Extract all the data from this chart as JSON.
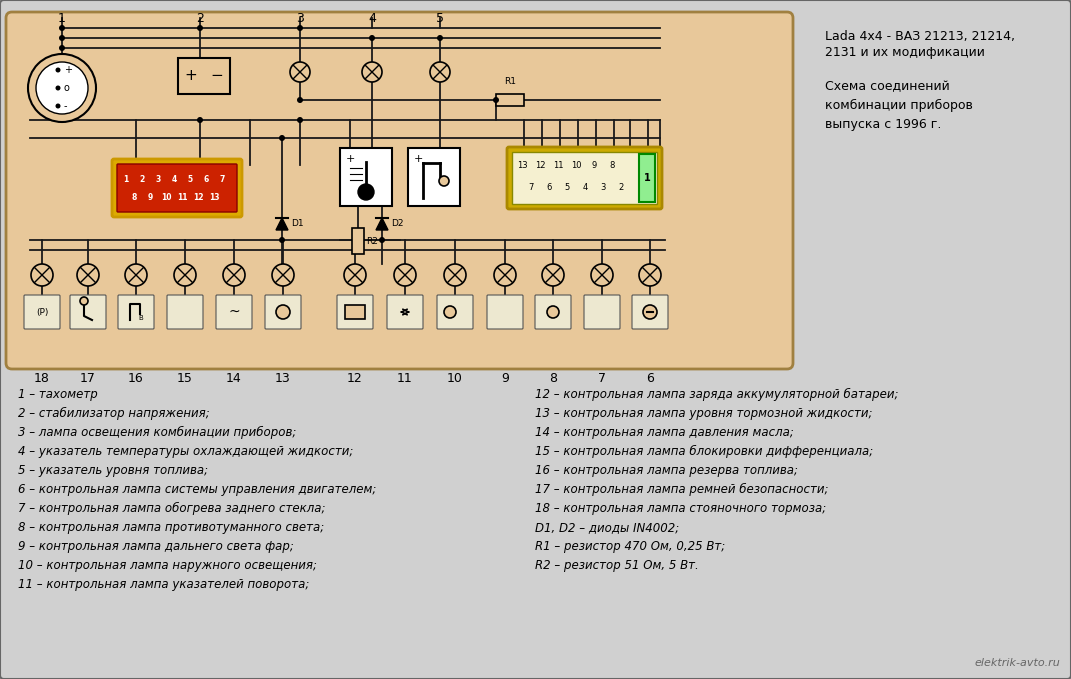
{
  "title_right_line1": "Lada 4x4 - ВАЗ 21213, 21214,",
  "title_right_line2": "2131 и их модификации",
  "subtitle_right": "Схема соединений\nкомбинации приборов\nвыпуска с 1996 г.",
  "bg_color": "#e8c89a",
  "outer_bg": "#c8c8c8",
  "wire_color": "#1a1a1a",
  "watermark": "elektrik-avto.ru",
  "legend_left": [
    "1 – тахометр",
    "2 – стабилизатор напряжения;",
    "3 – лампа освещения комбинации приборов;",
    "4 – указатель температуры охлаждающей жидкости;",
    "5 – указатель уровня топлива;",
    "6 – контрольная лампа системы управления двигателем;",
    "7 – контрольная лампа обогрева заднего стекла;",
    "8 – контрольная лампа противотуманного света;",
    "9 – контрольная лампа дальнего света фар;",
    "10 – контрольная лампа наружного освещения;",
    "11 – контрольная лампа указателей поворота;"
  ],
  "legend_right": [
    "12 – контрольная лампа заряда аккумуляторной батареи;",
    "13 – контрольная лампа уровня тормозной жидкости;",
    "14 – контрольная лампа давления масла;",
    "15 – контрольная лампа блокировки дифференциала;",
    "16 – контрольная лампа резерва топлива;",
    "17 – контрольная лампа ремней безопасности;",
    "18 – контрольная лампа стояночного тормоза;",
    "D1, D2 – диоды IN4002;",
    "R1 – резистор 470 Ом, 0,25 Вт;",
    "R2 – резистор 51 Ом, 5 Вт."
  ]
}
